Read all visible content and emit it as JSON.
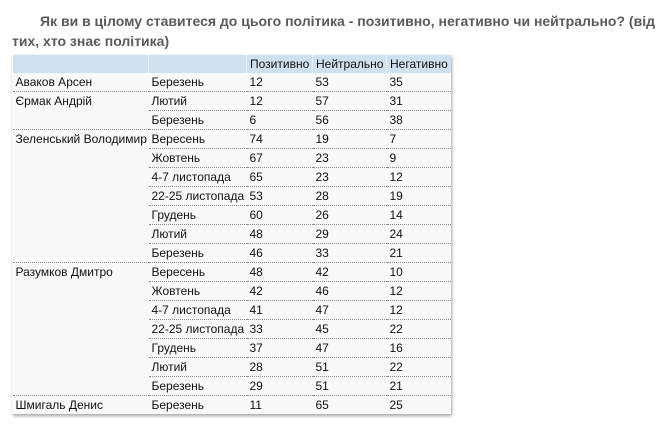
{
  "title": "Як ви в цілому ставитеся до цього політика - позитивно, негативно чи нейтрально? (від тих, хто знає політика)",
  "table": {
    "headers": [
      "",
      "",
      "Позитивно",
      "Нейтрально",
      "Негативно"
    ],
    "groups": [
      {
        "name": "Аваков Арсен",
        "rows": [
          [
            "Березень",
            "12",
            "53",
            "35"
          ]
        ]
      },
      {
        "name": "Єрмак Андрій",
        "rows": [
          [
            "Лютий",
            "12",
            "57",
            "31"
          ],
          [
            "Березень",
            "6",
            "56",
            "38"
          ]
        ]
      },
      {
        "name": "Зеленський Володимир",
        "rows": [
          [
            "Вересень",
            "74",
            "19",
            "7"
          ],
          [
            "Жовтень",
            "67",
            "23",
            "9"
          ],
          [
            "4-7 листопада",
            "65",
            "23",
            "12"
          ],
          [
            "22-25 листопада",
            "53",
            "28",
            "19"
          ],
          [
            "Грудень",
            "60",
            "26",
            "14"
          ],
          [
            "Лютий",
            "48",
            "29",
            "24"
          ],
          [
            "Березень",
            "46",
            "33",
            "21"
          ]
        ]
      },
      {
        "name": "Разумков Дмитро",
        "rows": [
          [
            "Вересень",
            "48",
            "42",
            "10"
          ],
          [
            "Жовтень",
            "42",
            "46",
            "12"
          ],
          [
            "4-7 листопада",
            "41",
            "47",
            "12"
          ],
          [
            "22-25 листопада",
            "33",
            "45",
            "22"
          ],
          [
            "Грудень",
            "37",
            "47",
            "16"
          ],
          [
            "Лютий",
            "28",
            "51",
            "22"
          ],
          [
            "Березень",
            "29",
            "51",
            "21"
          ]
        ]
      },
      {
        "name": "Шмигаль Денис",
        "rows": [
          [
            "Березень",
            "11",
            "65",
            "25"
          ]
        ]
      }
    ]
  },
  "colors": {
    "header_bg": "#cfe0ee",
    "title": "#5a5a5a"
  }
}
